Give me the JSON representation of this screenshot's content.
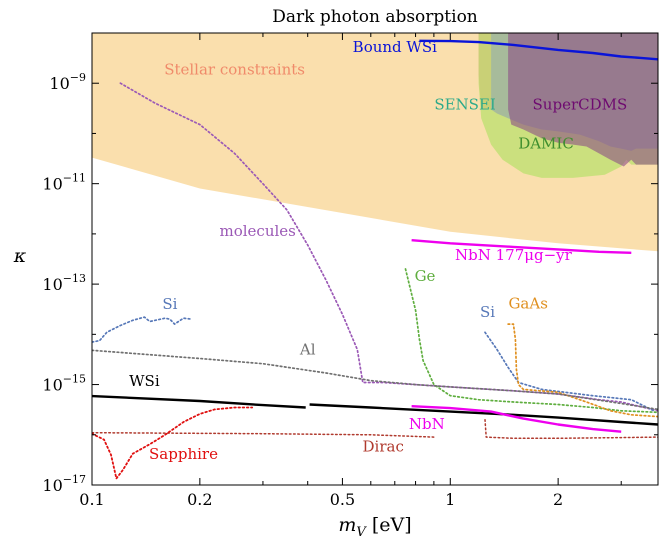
{
  "chart_data": {
    "type": "line",
    "title": "Dark photon absorption",
    "xlabel": "m_V [eV]",
    "ylabel": "κ",
    "xscale": "log",
    "yscale": "log",
    "xlim": [
      0.1,
      3.8
    ],
    "ylim": [
      1e-17,
      1e-08
    ],
    "grid": false,
    "x_ticks": [
      {
        "value": 0.1,
        "label": "0.1"
      },
      {
        "value": 0.2,
        "label": "0.2"
      },
      {
        "value": 0.5,
        "label": "0.5"
      },
      {
        "value": 1,
        "label": "1"
      },
      {
        "value": 2,
        "label": "2"
      }
    ],
    "y_ticks": [
      {
        "value": 1e-09,
        "mant": "10",
        "exp": "−9"
      },
      {
        "value": 1e-11,
        "mant": "10",
        "exp": "−11"
      },
      {
        "value": 1e-13,
        "mant": "10",
        "exp": "−13"
      },
      {
        "value": 1e-15,
        "mant": "10",
        "exp": "−15"
      },
      {
        "value": 1e-17,
        "mant": "10",
        "exp": "−17"
      }
    ],
    "regions": [
      {
        "label": "Stellar constraints",
        "color": "#f5b94a",
        "opacity": 0.45,
        "points": [
          [
            0.1,
            1e-08
          ],
          [
            3.8,
            1e-08
          ],
          [
            3.8,
            4.5e-13
          ],
          [
            2,
            6.5e-13
          ],
          [
            1,
            1.1e-12
          ],
          [
            0.5,
            2.6e-12
          ],
          [
            0.2,
            8e-12
          ],
          [
            0.1,
            3.3e-11
          ]
        ]
      },
      {
        "label": "SENSEI",
        "color": "#f27a7a",
        "opacity": 0.5,
        "points": [
          [
            1.2,
            1e-08
          ],
          [
            1.3,
            1e-08
          ],
          [
            1.3,
            3e-10
          ],
          [
            1.22,
            3e-10
          ],
          [
            1.2,
            1.5e-09
          ]
        ]
      },
      {
        "label": "DAMIC",
        "color": "#b7e06a",
        "opacity": 0.7,
        "points": [
          [
            1.2,
            1e-08
          ],
          [
            3.8,
            1e-08
          ],
          [
            3.8,
            2.4e-11
          ],
          [
            3.2,
            2.4e-11
          ],
          [
            3.1,
            3e-11
          ],
          [
            3.0,
            2.2e-11
          ],
          [
            2.7,
            1.5e-11
          ],
          [
            2.2,
            1.3e-11
          ],
          [
            1.8,
            1.3e-11
          ],
          [
            1.6,
            1.6e-11
          ],
          [
            1.4,
            3e-11
          ],
          [
            1.3,
            6e-11
          ],
          [
            1.22,
            2e-10
          ],
          [
            1.2,
            1e-09
          ]
        ]
      },
      {
        "label": "SENSEI-band",
        "color": "#8a9db2",
        "opacity": 0.55,
        "points": [
          [
            1.3,
            1e-08
          ],
          [
            3.8,
            1e-08
          ],
          [
            3.8,
            5e-11
          ],
          [
            3.3,
            5e-11
          ],
          [
            3.2,
            4.5e-11
          ],
          [
            3.0,
            5e-11
          ],
          [
            2.8,
            5.5e-11
          ],
          [
            2.6,
            7e-11
          ],
          [
            2.3,
            9.5e-11
          ],
          [
            2.0,
            1.1e-10
          ],
          [
            1.8,
            1.2e-10
          ],
          [
            1.6,
            1.5e-10
          ],
          [
            1.45,
            2e-10
          ],
          [
            1.35,
            2.5e-10
          ],
          [
            1.3,
            3e-10
          ]
        ]
      },
      {
        "label": "SuperCDMS",
        "color": "#8c4e86",
        "opacity": 0.6,
        "points": [
          [
            1.45,
            1e-08
          ],
          [
            3.8,
            1e-08
          ],
          [
            3.8,
            2.4e-11
          ],
          [
            3.3,
            2.4e-11
          ],
          [
            3.2,
            3e-11
          ],
          [
            3.05,
            2.2e-11
          ],
          [
            2.8,
            3e-11
          ],
          [
            2.6,
            4e-11
          ],
          [
            2.4,
            5.5e-11
          ],
          [
            2.2,
            6e-11
          ],
          [
            2.0,
            6.5e-11
          ],
          [
            1.8,
            8e-11
          ],
          [
            1.6,
            1.2e-10
          ],
          [
            1.48,
            1.5e-10
          ],
          [
            1.45,
            3e-10
          ]
        ]
      }
    ],
    "series": [
      {
        "name": "Bound WSi",
        "color": "#0a14d8",
        "style": "solid",
        "width": 2.4,
        "points": [
          [
            0.82,
            7e-09
          ],
          [
            1.0,
            6.9e-09
          ],
          [
            1.2,
            6.6e-09
          ],
          [
            1.5,
            5.8e-09
          ],
          [
            2.0,
            4.6e-09
          ],
          [
            2.5,
            4e-09
          ],
          [
            3.0,
            3.4e-09
          ],
          [
            3.4,
            3.2e-09
          ],
          [
            3.8,
            3e-09
          ]
        ]
      },
      {
        "name": "molecules",
        "color": "#9b59b6",
        "style": "dotted",
        "width": 1.7,
        "points": [
          [
            0.12,
            1e-09
          ],
          [
            0.15,
            4e-10
          ],
          [
            0.2,
            1.5e-10
          ],
          [
            0.25,
            4e-11
          ],
          [
            0.3,
            1e-11
          ],
          [
            0.35,
            3e-12
          ],
          [
            0.4,
            6e-13
          ],
          [
            0.45,
            1.2e-13
          ],
          [
            0.5,
            2.5e-14
          ],
          [
            0.55,
            5e-15
          ],
          [
            0.57,
            1.1e-15
          ],
          [
            0.65,
            1.1e-15
          ],
          [
            0.8,
            1e-15
          ],
          [
            1.0,
            9e-16
          ],
          [
            1.5,
            7.5e-16
          ],
          [
            2.0,
            6.5e-16
          ],
          [
            2.6,
            5e-16
          ],
          [
            3.0,
            4.5e-16
          ],
          [
            3.8,
            3e-16
          ]
        ]
      },
      {
        "name": "NbN 177μg−yr",
        "color": "#ee00ee",
        "style": "solid",
        "width": 2.4,
        "points": [
          [
            0.78,
            7.5e-13
          ],
          [
            1.0,
            6.5e-13
          ],
          [
            1.5,
            5.5e-13
          ],
          [
            2.0,
            4.9e-13
          ],
          [
            2.6,
            4.4e-13
          ],
          [
            3.2,
            4.2e-13
          ]
        ]
      },
      {
        "name": "Ge",
        "color": "#5fae3f",
        "style": "dotted",
        "width": 1.7,
        "points": [
          [
            0.75,
            2e-13
          ],
          [
            0.8,
            3e-14
          ],
          [
            0.82,
            8e-15
          ],
          [
            0.84,
            3e-15
          ],
          [
            0.9,
            1e-15
          ],
          [
            1.0,
            6e-16
          ],
          [
            1.2,
            5e-16
          ],
          [
            1.5,
            4.5e-16
          ],
          [
            2.0,
            4e-16
          ],
          [
            2.5,
            3.5e-16
          ],
          [
            3.0,
            3e-16
          ],
          [
            3.8,
            2.8e-16
          ]
        ]
      },
      {
        "name": "Si",
        "color": "#5778b8",
        "style": "dotted",
        "width": 1.7,
        "points": [
          [
            0.1,
            7e-15
          ],
          [
            0.105,
            7.5e-15
          ],
          [
            0.11,
            1.1e-14
          ],
          [
            0.12,
            1.5e-14
          ],
          [
            0.13,
            1.9e-14
          ],
          [
            0.14,
            2.2e-14
          ],
          [
            0.145,
            1.8e-14
          ],
          [
            0.16,
            2.1e-14
          ],
          [
            0.165,
            2e-14
          ],
          [
            0.17,
            1.6e-14
          ],
          [
            0.18,
            2.1e-14
          ],
          [
            0.19,
            2e-14
          ]
        ]
      },
      {
        "name": "Si",
        "color": "#5778b8",
        "style": "dotted",
        "width": 1.7,
        "points": [
          [
            1.25,
            1.1e-14
          ],
          [
            1.35,
            5e-15
          ],
          [
            1.45,
            2.2e-15
          ],
          [
            1.55,
            1.1e-15
          ],
          [
            1.8,
            8e-16
          ],
          [
            2.5,
            6e-16
          ],
          [
            3.2,
            5e-16
          ],
          [
            3.7,
            3e-16
          ]
        ]
      },
      {
        "name": "GaAs",
        "color": "#e09020",
        "style": "dotted",
        "width": 1.7,
        "points": [
          [
            1.45,
            1.6e-14
          ],
          [
            1.5,
            1.6e-14
          ],
          [
            1.52,
            8e-15
          ],
          [
            1.53,
            2e-15
          ],
          [
            1.55,
            1e-15
          ],
          [
            1.6,
            8e-16
          ],
          [
            2.0,
            7e-16
          ],
          [
            2.4,
            4.5e-16
          ],
          [
            2.8,
            3e-16
          ],
          [
            3.2,
            2.5e-16
          ],
          [
            3.8,
            2.3e-16
          ]
        ]
      },
      {
        "name": "Al",
        "color": "#707070",
        "style": "dotted",
        "width": 1.7,
        "points": [
          [
            0.1,
            4.8e-15
          ],
          [
            0.2,
            3.3e-15
          ],
          [
            0.3,
            2.6e-15
          ],
          [
            0.45,
            1.7e-15
          ],
          [
            0.6,
            1.2e-15
          ],
          [
            0.8,
            1e-15
          ],
          [
            1.0,
            9e-16
          ],
          [
            1.5,
            7.5e-16
          ],
          [
            2.0,
            6.5e-16
          ],
          [
            3.0,
            4.2e-16
          ],
          [
            3.8,
            3.2e-16
          ]
        ]
      },
      {
        "name": "WSi",
        "color": "#000000",
        "style": "solid",
        "width": 2.4,
        "points": [
          [
            0.1,
            5.9e-16
          ],
          [
            0.2,
            4.7e-16
          ],
          [
            0.3,
            3.9e-16
          ],
          [
            0.395,
            3.5e-16
          ]
        ]
      },
      {
        "name": "WSi",
        "color": "#000000",
        "style": "solid",
        "width": 2.4,
        "points": [
          [
            0.405,
            4e-16
          ],
          [
            0.6,
            3.5e-16
          ],
          [
            1.0,
            2.9e-16
          ],
          [
            1.5,
            2.5e-16
          ],
          [
            2.0,
            2.2e-16
          ],
          [
            3.0,
            1.8e-16
          ],
          [
            3.8,
            1.6e-16
          ]
        ]
      },
      {
        "name": "NbN",
        "color": "#ee00ee",
        "style": "solid",
        "width": 2.4,
        "points": [
          [
            0.78,
            3.7e-16
          ],
          [
            1.0,
            3.4e-16
          ],
          [
            1.3,
            2.9e-16
          ],
          [
            1.6,
            2.1e-16
          ],
          [
            2.0,
            1.6e-16
          ],
          [
            2.5,
            1.3e-16
          ],
          [
            3.0,
            1.15e-16
          ]
        ]
      },
      {
        "name": "Dirac",
        "color": "#b03a2e",
        "style": "dotted",
        "width": 1.5,
        "points": [
          [
            0.1,
            1.1e-16
          ],
          [
            0.3,
            1.05e-16
          ],
          [
            0.6,
            1e-16
          ],
          [
            0.9,
            9e-17
          ]
        ]
      },
      {
        "name": "Dirac",
        "color": "#b03a2e",
        "style": "dotted",
        "width": 1.5,
        "points": [
          [
            1.25,
            2e-16
          ],
          [
            1.26,
            9e-17
          ],
          [
            1.5,
            8.5e-17
          ],
          [
            2.0,
            8.5e-17
          ],
          [
            3.0,
            8.8e-17
          ],
          [
            3.8,
            9e-17
          ]
        ]
      },
      {
        "name": "Sapphire",
        "color": "#e01010",
        "style": "dotted",
        "width": 1.8,
        "points": [
          [
            0.1,
            1.05e-16
          ],
          [
            0.108,
            8e-17
          ],
          [
            0.113,
            4e-17
          ],
          [
            0.117,
            1.35e-17
          ],
          [
            0.122,
            2e-17
          ],
          [
            0.13,
            4.2e-17
          ],
          [
            0.145,
            6.5e-17
          ],
          [
            0.16,
            1e-16
          ],
          [
            0.18,
            1.8e-16
          ],
          [
            0.2,
            2.6e-16
          ],
          [
            0.22,
            3.2e-16
          ],
          [
            0.25,
            3.5e-16
          ],
          [
            0.28,
            3.5e-16
          ]
        ]
      }
    ],
    "annotations": [
      {
        "text": "Stellar constraints",
        "x": 0.25,
        "y": 1.5e-09,
        "color": "#f08a6a"
      },
      {
        "text": "Bound WSi",
        "x": 0.7,
        "y": 4.2e-09,
        "color": "#0a14d8"
      },
      {
        "text": "SENSEI",
        "x": 1.1,
        "y": 3e-10,
        "color": "#2eaa8a"
      },
      {
        "text": "SuperCDMS",
        "x": 2.3,
        "y": 3e-10,
        "color": "#6e0a70"
      },
      {
        "text": "DAMIC",
        "x": 1.85,
        "y": 5e-11,
        "color": "#3e8e2e"
      },
      {
        "text": "molecules",
        "x": 0.29,
        "y": 9e-13,
        "color": "#9b59b6"
      },
      {
        "text": "NbN 177μg−yr",
        "x": 1.5,
        "y": 3e-13,
        "color": "#ee00ee"
      },
      {
        "text": "Ge",
        "x": 0.85,
        "y": 1.15e-13,
        "color": "#5fae3f"
      },
      {
        "text": "Si",
        "x": 0.165,
        "y": 3.2e-14,
        "color": "#5778b8"
      },
      {
        "text": "Si",
        "x": 1.27,
        "y": 2.2e-14,
        "color": "#5778b8"
      },
      {
        "text": "GaAs",
        "x": 1.65,
        "y": 3.3e-14,
        "color": "#e09020"
      },
      {
        "text": "Al",
        "x": 0.4,
        "y": 4e-15,
        "color": "#707070"
      },
      {
        "text": "WSi",
        "x": 0.14,
        "y": 9.3e-16,
        "color": "#000000"
      },
      {
        "text": "NbN",
        "x": 0.86,
        "y": 1.3e-16,
        "color": "#ee00ee"
      },
      {
        "text": "Dirac",
        "x": 0.65,
        "y": 4.6e-17,
        "color": "#b03a2e"
      },
      {
        "text": "Sapphire",
        "x": 0.18,
        "y": 3.3e-17,
        "color": "#e01010"
      }
    ]
  }
}
